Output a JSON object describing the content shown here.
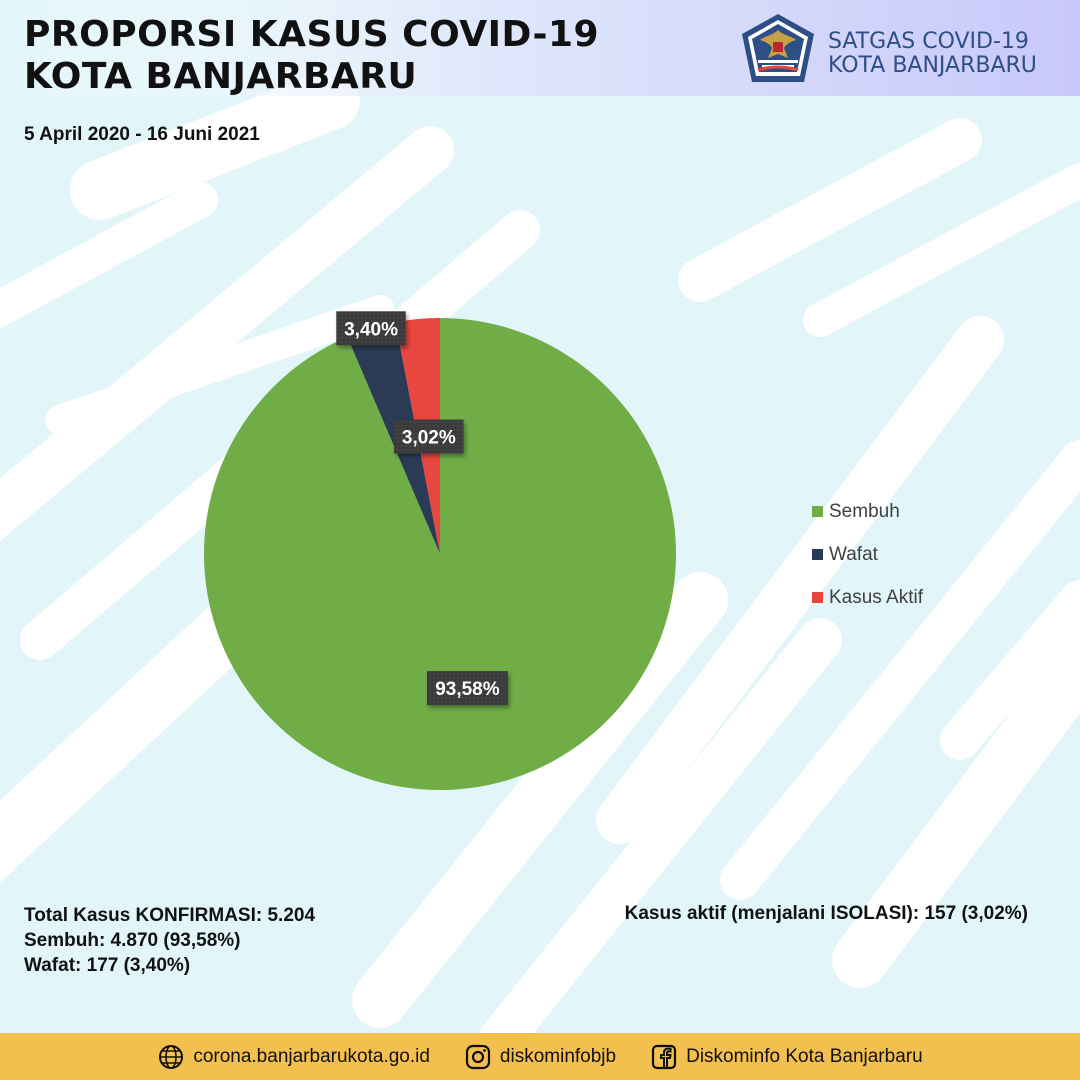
{
  "header": {
    "title_line1": "PROPORSI KASUS COVID-19",
    "title_line2": "KOTA BANJARBARU",
    "date_range": "5 April 2020 - 16 Juni 2021",
    "logo_org_line1": "SATGAS COVID-19",
    "logo_org_line2": "KOTA BANJARBARU",
    "logo_icon": "garuda-emblem-icon"
  },
  "chart_data": {
    "type": "pie",
    "title": "",
    "categories": [
      "Sembuh",
      "Wafat",
      "Kasus Aktif"
    ],
    "values": [
      93.58,
      3.4,
      3.02
    ],
    "labels": [
      "93,58%",
      "3,40%",
      "3,02%"
    ],
    "colors": [
      "#70ad47",
      "#2b3b55",
      "#e8463f"
    ],
    "legend_position": "right"
  },
  "stats": {
    "total": "Total Kasus KONFIRMASI: 5.204",
    "sembuh": "Sembuh: 4.870 (93,58%)",
    "wafat": "Wafat: 177 (3,40%)",
    "aktif": "Kasus aktif (menjalani ISOLASI): 157 (3,02%)"
  },
  "footer": {
    "website": "corona.banjarbarukota.go.id",
    "instagram": "diskominfobjb",
    "facebook": "Diskominfo Kota Banjarbaru",
    "icons": [
      "globe-icon",
      "instagram-icon",
      "facebook-icon"
    ]
  },
  "colors": {
    "footer_bg": "#f3c04f",
    "brand_text": "#2e4f86",
    "background_tint": "#dff4f8"
  }
}
